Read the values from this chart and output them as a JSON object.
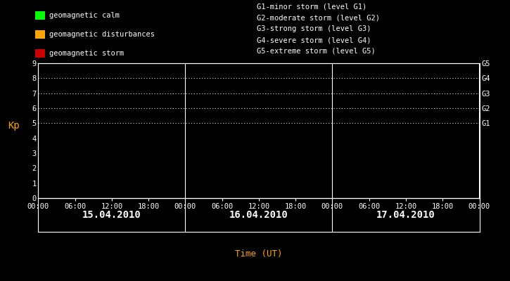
{
  "bg_color": "#000000",
  "fg_color": "#ffffff",
  "orange_color": "#ffa500",
  "plot_bg": "#000000",
  "spine_color": "#ffffff",
  "title_x_label": "Time (UT)",
  "ylabel": "Kp",
  "ylim": [
    0,
    9
  ],
  "yticks": [
    0,
    1,
    2,
    3,
    4,
    5,
    6,
    7,
    8,
    9
  ],
  "days": [
    "15.04.2010",
    "16.04.2010",
    "17.04.2010"
  ],
  "x_tick_labels": [
    "00:00",
    "06:00",
    "12:00",
    "18:00",
    "00:00",
    "06:00",
    "12:00",
    "18:00",
    "00:00",
    "06:00",
    "12:00",
    "18:00",
    "00:00"
  ],
  "x_tick_positions": [
    0,
    6,
    12,
    18,
    24,
    30,
    36,
    42,
    48,
    54,
    60,
    66,
    72
  ],
  "day_centers": [
    12,
    36,
    60
  ],
  "day_dividers": [
    24,
    48
  ],
  "dotted_lines_y": [
    5,
    6,
    7,
    8,
    9
  ],
  "legend_left": [
    {
      "color": "#00ff00",
      "label": "geomagnetic calm"
    },
    {
      "color": "#ffa500",
      "label": "geomagnetic disturbances"
    },
    {
      "color": "#cc0000",
      "label": "geomagnetic storm"
    }
  ],
  "legend_right_lines": [
    "G1-minor storm (level G1)",
    "G2-moderate storm (level G2)",
    "G3-strong storm (level G3)",
    "G4-severe storm (level G4)",
    "G5-extreme storm (level G5)"
  ],
  "font_size": 7.5,
  "tick_font_size": 7.5,
  "label_font_size": 9,
  "day_label_font_size": 10
}
